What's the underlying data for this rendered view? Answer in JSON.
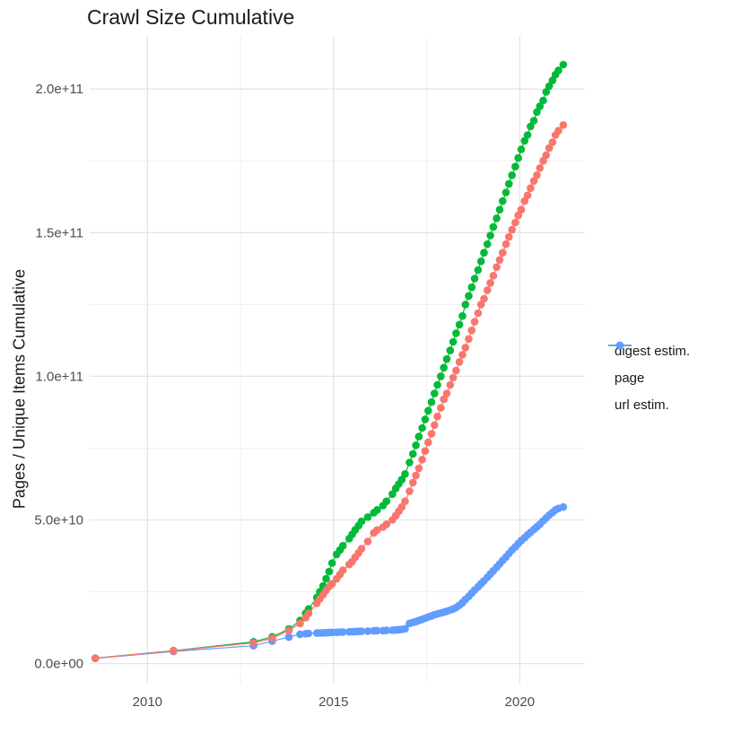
{
  "chart_data": {
    "type": "line",
    "title": "Crawl Size Cumulative",
    "xlabel": "",
    "ylabel": "Pages / Unique Items Cumulative",
    "legend_position": "right",
    "grid": true,
    "xlim": [
      2008.45,
      2021.75
    ],
    "ylim": [
      -7000000000.0,
      218500000000.0
    ],
    "x_ticks": {
      "major": [
        2010,
        2015,
        2020
      ],
      "minor": [
        2012.5,
        2017.5
      ],
      "labels": [
        "2010",
        "2015",
        "2020"
      ]
    },
    "y_ticks": {
      "major": [
        0,
        50000000000.0,
        100000000000.0,
        150000000000.0,
        200000000000.0
      ],
      "minor": [
        25000000000.0,
        75000000000.0,
        125000000000.0,
        175000000000.0
      ],
      "labels": [
        "0.0e+00",
        "5.0e+10",
        "1.0e+11",
        "1.5e+11",
        "2.0e+11"
      ]
    },
    "x": [
      2008.6,
      2010.7,
      2012.85,
      2013.35,
      2013.8,
      2014.1,
      2014.25,
      2014.33,
      2014.55,
      2014.63,
      2014.72,
      2014.8,
      2014.88,
      2014.96,
      2015.08,
      2015.17,
      2015.25,
      2015.42,
      2015.5,
      2015.58,
      2015.67,
      2015.75,
      2015.92,
      2016.08,
      2016.17,
      2016.33,
      2016.42,
      2016.58,
      2016.67,
      2016.75,
      2016.83,
      2016.92,
      2017.04,
      2017.13,
      2017.21,
      2017.29,
      2017.38,
      2017.46,
      2017.54,
      2017.63,
      2017.71,
      2017.79,
      2017.88,
      2017.96,
      2018.04,
      2018.13,
      2018.21,
      2018.29,
      2018.38,
      2018.46,
      2018.54,
      2018.63,
      2018.71,
      2018.79,
      2018.88,
      2018.96,
      2019.04,
      2019.13,
      2019.21,
      2019.29,
      2019.38,
      2019.46,
      2019.54,
      2019.63,
      2019.71,
      2019.79,
      2019.88,
      2019.96,
      2020.04,
      2020.13,
      2020.21,
      2020.29,
      2020.38,
      2020.46,
      2020.54,
      2020.63,
      2020.71,
      2020.79,
      2020.88,
      2020.96,
      2021.04,
      2021.17
    ],
    "series": [
      {
        "name": "digest estim.",
        "color": "#F8766D",
        "values": [
          1900000000.0,
          4400000000.0,
          7200000000.0,
          8800000000.0,
          11500000000.0,
          14000000000.0,
          16000000000.0,
          17500000000.0,
          21000000000.0,
          22500000000.0,
          24000000000.0,
          25500000000.0,
          26800000000.0,
          27800000000.0,
          29500000000.0,
          31000000000.0,
          32500000000.0,
          34500000000.0,
          35500000000.0,
          37000000000.0,
          38500000000.0,
          40000000000.0,
          42500000000.0,
          45500000000.0,
          46500000000.0,
          47500000000.0,
          48500000000.0,
          50000000000.0,
          51500000000.0,
          53000000000.0,
          54500000000.0,
          56500000000.0,
          60000000000.0,
          63000000000.0,
          65500000000.0,
          68000000000.0,
          71000000000.0,
          74000000000.0,
          77000000000.0,
          80000000000.0,
          83000000000.0,
          86000000000.0,
          89000000000.0,
          92000000000.0,
          94000000000.0,
          97000000000.0,
          99500000000.0,
          102000000000.0,
          105000000000.0,
          107500000000.0,
          110000000000.0,
          113000000000.0,
          116000000000.0,
          119000000000.0,
          122000000000.0,
          125000000000.0,
          127000000000.0,
          130000000000.0,
          132500000000.0,
          135000000000.0,
          138000000000.0,
          140500000000.0,
          143000000000.0,
          146000000000.0,
          148500000000.0,
          151000000000.0,
          153500000000.0,
          156000000000.0,
          158000000000.0,
          161000000000.0,
          163000000000.0,
          165500000000.0,
          168000000000.0,
          170000000000.0,
          172500000000.0,
          175000000000.0,
          177000000000.0,
          179500000000.0,
          181500000000.0,
          184000000000.0,
          185500000000.0,
          187500000000.0
        ]
      },
      {
        "name": "page",
        "color": "#00BA38",
        "values": [
          1900000000.0,
          4500000000.0,
          7600000000.0,
          9300000000.0,
          12000000000.0,
          15000000000.0,
          17500000000.0,
          19000000000.0,
          23000000000.0,
          25000000000.0,
          27000000000.0,
          29500000000.0,
          32000000000.0,
          35000000000.0,
          38000000000.0,
          39500000000.0,
          41000000000.0,
          43500000000.0,
          45000000000.0,
          46500000000.0,
          48000000000.0,
          49500000000.0,
          51000000000.0,
          52500000000.0,
          53500000000.0,
          55000000000.0,
          56500000000.0,
          59000000000.0,
          61000000000.0,
          62500000000.0,
          64000000000.0,
          66000000000.0,
          70000000000.0,
          73000000000.0,
          76000000000.0,
          79000000000.0,
          82000000000.0,
          85000000000.0,
          88000000000.0,
          91000000000.0,
          94000000000.0,
          97000000000.0,
          100000000000.0,
          103000000000.0,
          106000000000.0,
          109000000000.0,
          112000000000.0,
          115000000000.0,
          118000000000.0,
          121000000000.0,
          125000000000.0,
          128000000000.0,
          131000000000.0,
          134000000000.0,
          137000000000.0,
          140000000000.0,
          143000000000.0,
          146000000000.0,
          149000000000.0,
          152000000000.0,
          155000000000.0,
          158000000000.0,
          161000000000.0,
          164000000000.0,
          167000000000.0,
          170000000000.0,
          173000000000.0,
          176000000000.0,
          179000000000.0,
          182000000000.0,
          184000000000.0,
          187000000000.0,
          189000000000.0,
          192000000000.0,
          194000000000.0,
          196000000000.0,
          199000000000.0,
          201000000000.0,
          203000000000.0,
          205000000000.0,
          206500000000.0,
          208500000000.0
        ]
      },
      {
        "name": "url estim.",
        "color": "#619CFF",
        "values": [
          1800000000.0,
          4200000000.0,
          6200000000.0,
          7800000000.0,
          9200000000.0,
          10200000000.0,
          10400000000.0,
          10500000000.0,
          10600000000.0,
          10650000000.0,
          10700000000.0,
          10750000000.0,
          10800000000.0,
          10850000000.0,
          10900000000.0,
          10950000000.0,
          11000000000.0,
          11050000000.0,
          11100000000.0,
          11150000000.0,
          11200000000.0,
          11250000000.0,
          11300000000.0,
          11400000000.0,
          11450000000.0,
          11500000000.0,
          11550000000.0,
          11600000000.0,
          11700000000.0,
          11800000000.0,
          11900000000.0,
          12100000000.0,
          14000000000.0,
          14300000000.0,
          14600000000.0,
          15000000000.0,
          15400000000.0,
          15800000000.0,
          16200000000.0,
          16600000000.0,
          17000000000.0,
          17300000000.0,
          17600000000.0,
          17900000000.0,
          18200000000.0,
          18600000000.0,
          19000000000.0,
          19500000000.0,
          20300000000.0,
          21200000000.0,
          22300000000.0,
          23400000000.0,
          24500000000.0,
          25600000000.0,
          26700000000.0,
          27800000000.0,
          28800000000.0,
          30000000000.0,
          31200000000.0,
          32300000000.0,
          33500000000.0,
          34700000000.0,
          35900000000.0,
          37100000000.0,
          38300000000.0,
          39500000000.0,
          40600000000.0,
          41800000000.0,
          42800000000.0,
          43800000000.0,
          44800000000.0,
          45700000000.0,
          46700000000.0,
          47600000000.0,
          48500000000.0,
          49700000000.0,
          50700000000.0,
          51700000000.0,
          52600000000.0,
          53500000000.0,
          54000000000.0,
          54500000000.0
        ]
      }
    ]
  },
  "style": {
    "grid_major_color": "#e4e4e4",
    "grid_minor_color": "#efefef",
    "point_radius": 4.3
  }
}
